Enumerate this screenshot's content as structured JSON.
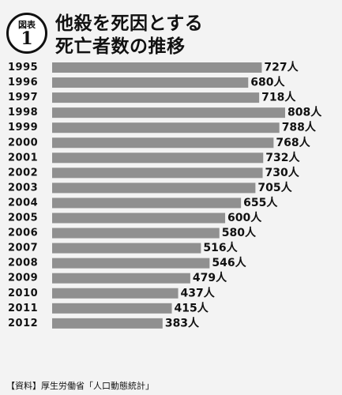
{
  "figure": {
    "badge_label": "図表",
    "badge_number": "1",
    "title_line1": "他殺を死因とする",
    "title_line2": "死亡者数の推移"
  },
  "chart_data": {
    "type": "bar",
    "orientation": "horizontal",
    "unit": "人",
    "categories": [
      "1995",
      "1996",
      "1997",
      "1998",
      "1999",
      "2000",
      "2001",
      "2002",
      "2003",
      "2004",
      "2005",
      "2006",
      "2007",
      "2008",
      "2009",
      "2010",
      "2011",
      "2012"
    ],
    "values": [
      727,
      680,
      718,
      808,
      788,
      768,
      732,
      730,
      705,
      655,
      600,
      580,
      516,
      546,
      479,
      437,
      415,
      383
    ],
    "bar_color": "#909090"
  },
  "source": "【資料】厚生労働省「人口動態統計」"
}
